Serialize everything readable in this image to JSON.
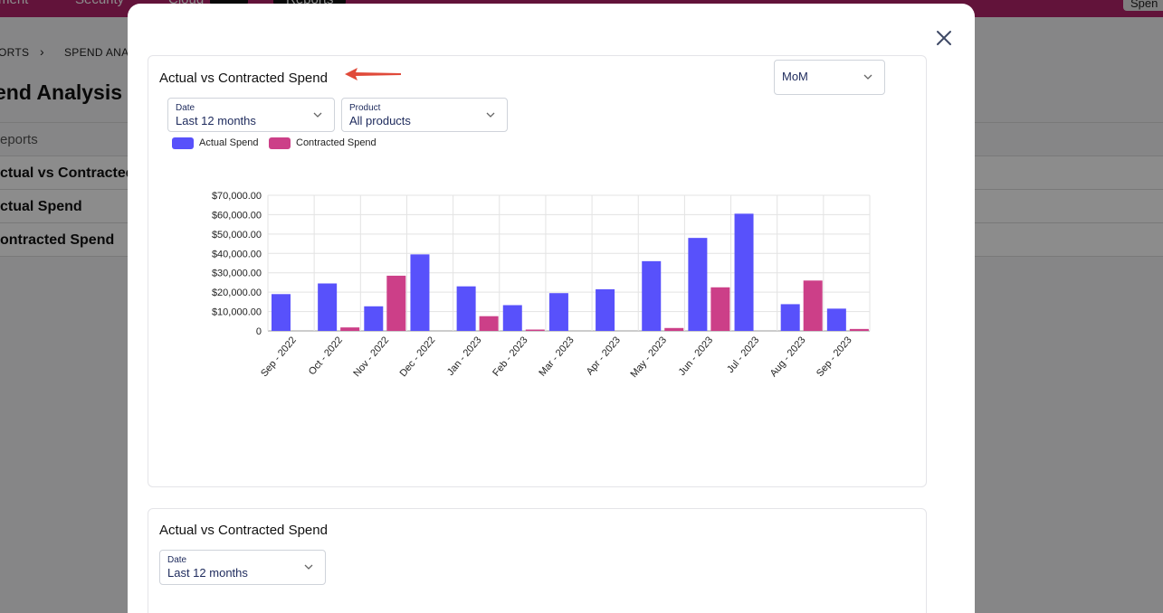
{
  "background": {
    "nav_items": [
      "ment",
      "Security",
      "Cloud",
      "Reports"
    ],
    "nav_button": "Spen",
    "breadcrumb": [
      "ORTS",
      "SPEND ANAL"
    ],
    "page_title": "end Analysis",
    "table_header": "eports",
    "table_rows": [
      "ctual vs Contracted",
      "ctual Spend",
      "ontracted Spend"
    ]
  },
  "modal": {
    "close_icon": "close-icon",
    "card1": {
      "title": "Actual vs Contracted Spend",
      "period_select": {
        "value": "MoM"
      },
      "date_filter": {
        "label": "Date",
        "value": "Last 12 months"
      },
      "product_filter": {
        "label": "Product",
        "value": "All products"
      }
    },
    "card2": {
      "title": "Actual vs Contracted Spend",
      "date_filter": {
        "label": "Date",
        "value": "Last 12 months"
      }
    }
  },
  "colors": {
    "actual": "#5851fb",
    "contracted": "#cc3f88",
    "brand": "#b3236b",
    "arrow": "#e04a3a"
  },
  "chart_data": {
    "type": "bar",
    "categories": [
      "Sep - 2022",
      "Oct - 2022",
      "Nov - 2022",
      "Dec - 2022",
      "Jan - 2023",
      "Feb - 2023",
      "Mar - 2023",
      "Apr - 2023",
      "May - 2023",
      "Jun - 2023",
      "Jul - 2023",
      "Aug - 2023",
      "Sep - 2023"
    ],
    "series": [
      {
        "name": "Actual Spend",
        "values": [
          19000,
          24500,
          12700,
          39500,
          23000,
          13300,
          19500,
          21500,
          36000,
          48000,
          60500,
          13800,
          11500
        ]
      },
      {
        "name": "Contracted Spend",
        "values": [
          0,
          1800,
          28500,
          0,
          7600,
          500,
          0,
          0,
          1500,
          22500,
          0,
          26000,
          1000
        ]
      }
    ],
    "y_ticks": [
      "0",
      "$10,000.00",
      "$20,000.00",
      "$30,000.00",
      "$40,000.00",
      "$50,000.00",
      "$60,000.00",
      "$70,000.00"
    ],
    "ylim": [
      0,
      70000
    ],
    "grid": true,
    "legend_position": "top-left"
  }
}
